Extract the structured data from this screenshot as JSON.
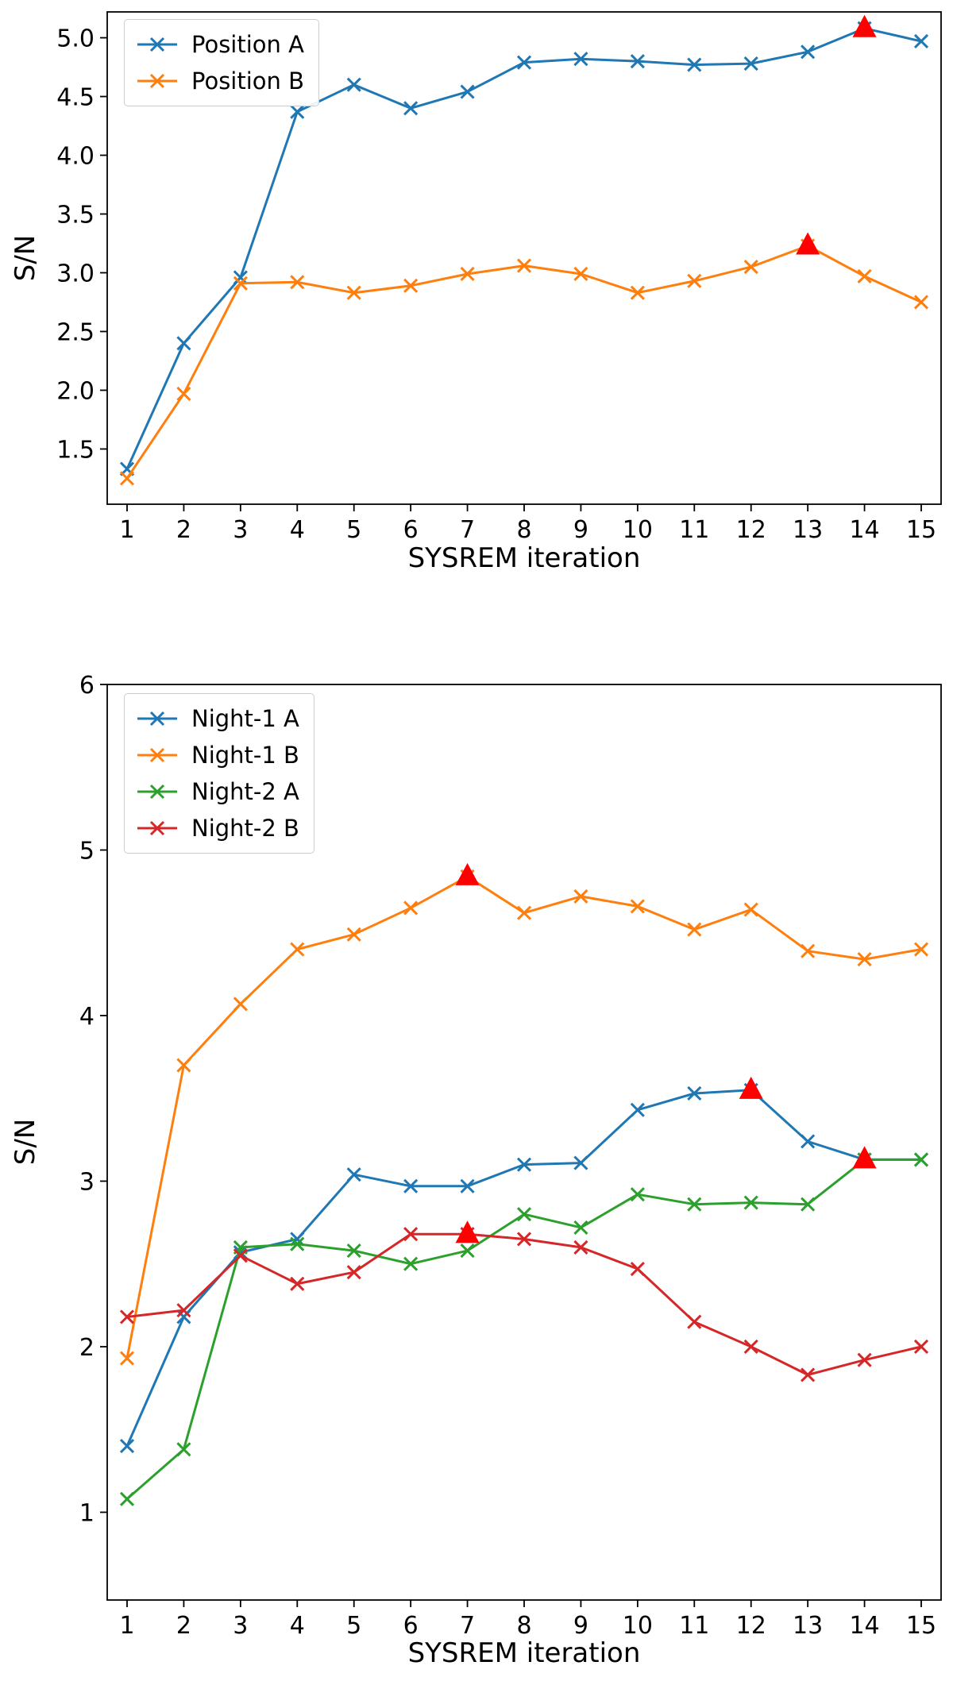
{
  "chart_data": [
    {
      "type": "line",
      "title": "",
      "xlabel": "SYSREM iteration",
      "ylabel": "S/N",
      "x": [
        1,
        2,
        3,
        4,
        5,
        6,
        7,
        8,
        9,
        10,
        11,
        12,
        13,
        14,
        15
      ],
      "xlim": [
        0.65,
        15.35
      ],
      "ylim": [
        1.03,
        5.22
      ],
      "xticks": [
        1,
        2,
        3,
        4,
        5,
        6,
        7,
        8,
        9,
        10,
        11,
        12,
        13,
        14,
        15
      ],
      "xtick_labels": [
        "1",
        "2",
        "3",
        "4",
        "5",
        "6",
        "7",
        "8",
        "9",
        "10",
        "11",
        "12",
        "13",
        "14",
        "15"
      ],
      "yticks": [
        1.5,
        2.0,
        2.5,
        3.0,
        3.5,
        4.0,
        4.5,
        5.0
      ],
      "ytick_labels": [
        "1.5",
        "2.0",
        "2.5",
        "3.0",
        "3.5",
        "4.0",
        "4.5",
        "5.0"
      ],
      "grid": false,
      "legend_position": "upper-left",
      "best_marker": {
        "shape": "triangle-up",
        "color": "#ff0000"
      },
      "series": [
        {
          "name": "Position A",
          "color": "#1f77b4",
          "marker": "x",
          "values": [
            1.33,
            2.4,
            2.96,
            4.37,
            4.6,
            4.4,
            4.54,
            4.79,
            4.82,
            4.8,
            4.77,
            4.78,
            4.88,
            5.08,
            4.97
          ],
          "best_iteration": 14
        },
        {
          "name": "Position B",
          "color": "#ff7f0e",
          "marker": "x",
          "values": [
            1.25,
            1.97,
            2.91,
            2.92,
            2.83,
            2.89,
            2.99,
            3.06,
            2.99,
            2.83,
            2.93,
            3.05,
            3.23,
            2.97,
            2.75
          ],
          "best_iteration": 13
        }
      ]
    },
    {
      "type": "line",
      "title": "",
      "xlabel": "SYSREM iteration",
      "ylabel": "S/N",
      "x": [
        1,
        2,
        3,
        4,
        5,
        6,
        7,
        8,
        9,
        10,
        11,
        12,
        13,
        14,
        15
      ],
      "xlim": [
        0.65,
        15.35
      ],
      "ylim": [
        0.47,
        6.0
      ],
      "xticks": [
        1,
        2,
        3,
        4,
        5,
        6,
        7,
        8,
        9,
        10,
        11,
        12,
        13,
        14,
        15
      ],
      "xtick_labels": [
        "1",
        "2",
        "3",
        "4",
        "5",
        "6",
        "7",
        "8",
        "9",
        "10",
        "11",
        "12",
        "13",
        "14",
        "15"
      ],
      "yticks": [
        1,
        2,
        3,
        4,
        5,
        6
      ],
      "ytick_labels": [
        "1",
        "2",
        "3",
        "4",
        "5",
        "6"
      ],
      "grid": false,
      "legend_position": "upper-left",
      "best_marker": {
        "shape": "triangle-up",
        "color": "#ff0000"
      },
      "series": [
        {
          "name": "Night-1 A",
          "color": "#1f77b4",
          "marker": "x",
          "values": [
            1.4,
            2.18,
            2.57,
            2.65,
            3.04,
            2.97,
            2.97,
            3.1,
            3.11,
            3.43,
            3.53,
            3.55,
            3.24,
            3.13,
            3.13
          ],
          "best_iteration": 12
        },
        {
          "name": "Night-1 B",
          "color": "#ff7f0e",
          "marker": "x",
          "values": [
            1.93,
            3.7,
            4.07,
            4.4,
            4.49,
            4.65,
            4.84,
            4.62,
            4.72,
            4.66,
            4.52,
            4.64,
            4.39,
            4.34,
            4.4
          ],
          "best_iteration": 7
        },
        {
          "name": "Night-2 A",
          "color": "#2ca02c",
          "marker": "x",
          "values": [
            1.08,
            1.38,
            2.6,
            2.62,
            2.58,
            2.5,
            2.58,
            2.8,
            2.72,
            2.92,
            2.86,
            2.87,
            2.86,
            3.13,
            3.13
          ],
          "best_iteration": 14
        },
        {
          "name": "Night-2 B",
          "color": "#d62728",
          "marker": "x",
          "values": [
            2.18,
            2.22,
            2.55,
            2.38,
            2.45,
            2.68,
            2.68,
            2.65,
            2.6,
            2.47,
            2.15,
            2.0,
            1.83,
            1.92,
            2.0
          ],
          "best_iteration": 7
        }
      ]
    }
  ]
}
